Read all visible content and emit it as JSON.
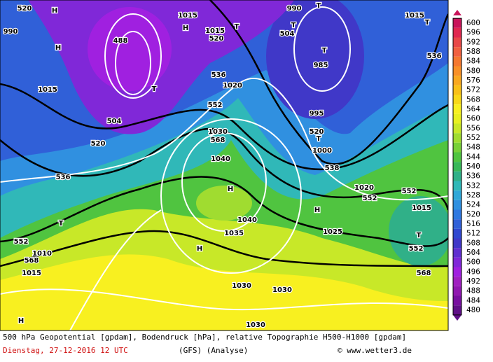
{
  "map": {
    "labels": [
      "520",
      "H",
      "990",
      "H",
      "488",
      "1015",
      "H",
      "1015",
      "520",
      "T",
      "990",
      "504",
      "T",
      "T",
      "985",
      "T",
      "1015",
      "T",
      "536",
      "1015",
      "T",
      "536",
      "1020",
      "504",
      "520",
      "552",
      "995",
      "520",
      "T",
      "568",
      "1030",
      "1040",
      "1000",
      "538",
      "536",
      "H",
      "552",
      "552",
      "1020",
      "1015",
      "T",
      "H",
      "T",
      "1040",
      "1035",
      "1025",
      "552",
      "H",
      "552",
      "568",
      "1010",
      "1015",
      "568",
      "1030",
      "1030",
      "1030",
      "H"
    ]
  },
  "colorbar": {
    "levels": [
      600,
      596,
      592,
      588,
      584,
      580,
      576,
      572,
      568,
      564,
      560,
      556,
      552,
      548,
      544,
      540,
      536,
      532,
      528,
      524,
      520,
      516,
      512,
      508,
      504,
      500,
      496,
      492,
      488,
      484,
      480
    ],
    "colors": [
      "#c8145a",
      "#e02850",
      "#e84848",
      "#f06040",
      "#f47830",
      "#f89028",
      "#f8a820",
      "#f8c018",
      "#f8d818",
      "#f8f020",
      "#e8f020",
      "#c8e828",
      "#a0dc30",
      "#78d038",
      "#50c440",
      "#38b858",
      "#30b088",
      "#30b8b8",
      "#30a8d8",
      "#3090e0",
      "#3078e0",
      "#3060d8",
      "#3048d0",
      "#4038c8",
      "#6030d0",
      "#8028d8",
      "#a020e0",
      "#a020c0",
      "#9018b0",
      "#7810a0",
      "#601088"
    ]
  },
  "caption": {
    "line1": "500 hPa Geopotential [gpdam], Bodendruck [hPa], relative Topographie H500-H1000 [gpdam]",
    "date": "Dienstag, 27-12-2016  12 UTC",
    "model": "(GFS)  (Analyse)",
    "source": "© www.wetter3.de"
  }
}
